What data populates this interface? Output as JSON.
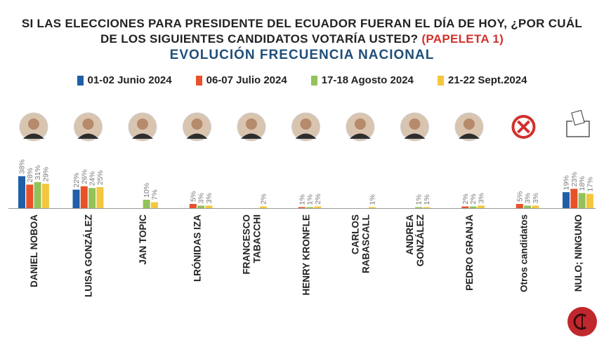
{
  "header": {
    "line1": "SI LAS ELECCIONES PARA PRESIDENTE DEL ECUADOR FUERAN EL DÍA DE HOY, ¿POR CUÁL",
    "line2": "DE LOS SIGUIENTES CANDIDATOS VOTARÍA USTED?",
    "line2_tag": "(PAPELETA 1)",
    "subtitle": "EVOLUCIÓN FRECUENCIA NACIONAL"
  },
  "colors": {
    "series": [
      "#1f5fa8",
      "#e8512a",
      "#93c25a",
      "#f4c63d"
    ],
    "label": "#7a7a7a"
  },
  "chart_data": {
    "type": "bar",
    "title": "SI LAS ELECCIONES PARA PRESIDENTE DEL ECUADOR FUERAN EL DÍA DE HOY, ¿POR CUÁL DE LOS SIGUIENTES CANDIDATOS VOTARÍA USTED? (PAPELETA 1)",
    "subtitle": "EVOLUCIÓN FRECUENCIA NACIONAL",
    "legend_position": "top",
    "grid": false,
    "ylim": [
      0,
      40
    ],
    "categories": [
      [
        "DANIEL NOBOA"
      ],
      [
        "LUISA GONZÁLEZ"
      ],
      [
        "JAN TOPIC"
      ],
      [
        "LRÓNIDAS IZA"
      ],
      [
        "FRANCESCO",
        "TABACCHI"
      ],
      [
        "HENRY KRONFLE"
      ],
      [
        "CARLOS",
        "RABASCALL"
      ],
      [
        "ANDREA",
        "GONZÁLEZ"
      ],
      [
        "PEDRO GRANJA"
      ],
      [
        "Otros candidatos"
      ],
      [
        "NULO; NINGUNO"
      ]
    ],
    "icons": [
      "candidate-photo",
      "candidate-photo",
      "candidate-photo",
      "candidate-photo",
      "candidate-photo",
      "candidate-photo",
      "candidate-photo",
      "candidate-photo",
      "candidate-photo",
      "crossed-ballot-icon",
      "ballot-box-icon"
    ],
    "series": [
      {
        "name": "01-02 Junio 2024",
        "values": [
          38,
          22,
          null,
          null,
          null,
          null,
          null,
          null,
          null,
          null,
          19
        ]
      },
      {
        "name": "06-07 Julio 2024",
        "values": [
          28,
          26,
          null,
          5,
          null,
          1,
          null,
          null,
          2,
          5,
          23
        ]
      },
      {
        "name": "17-18 Agosto 2024",
        "values": [
          31,
          24,
          10,
          3,
          null,
          1,
          null,
          1,
          2,
          3,
          18
        ]
      },
      {
        "name": "21-22 Sept.2024",
        "values": [
          29,
          25,
          7,
          3,
          2,
          2,
          1,
          1,
          3,
          3,
          17
        ]
      }
    ]
  }
}
